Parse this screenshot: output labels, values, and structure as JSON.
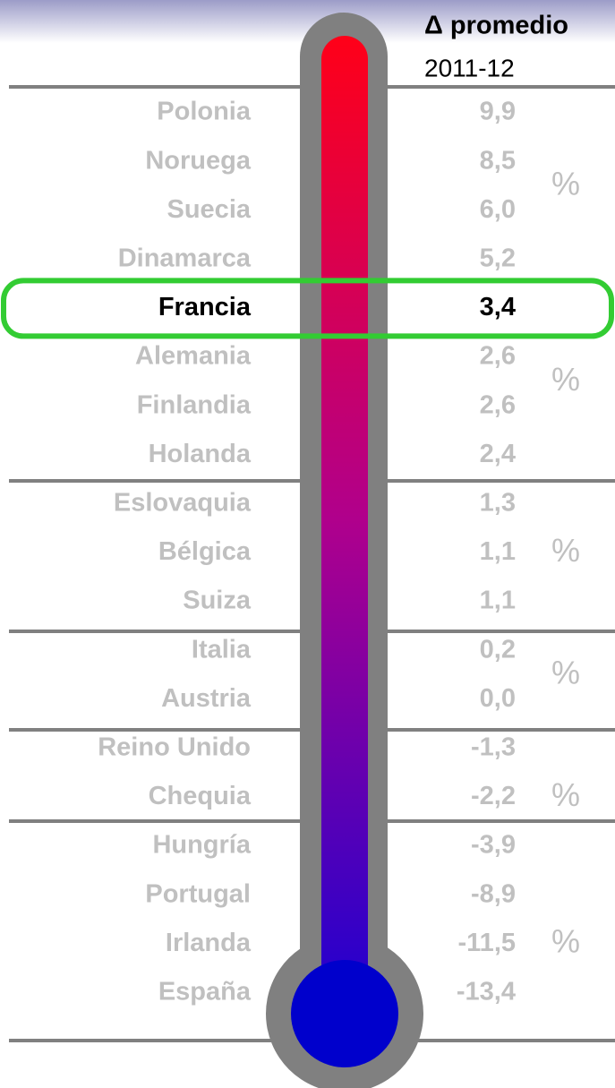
{
  "header": {
    "title": "Δ promedio",
    "subtitle": "2011-12"
  },
  "rows": [
    {
      "country": "Polonia",
      "value": "9,9"
    },
    {
      "country": "Noruega",
      "value": "8,5"
    },
    {
      "country": "Suecia",
      "value": "6,0"
    },
    {
      "country": "Dinamarca",
      "value": "5,2"
    },
    {
      "country": "Francia",
      "value": "3,4",
      "highlighted": true
    },
    {
      "country": "Alemania",
      "value": "2,6"
    },
    {
      "country": "Finlandia",
      "value": "2,6"
    },
    {
      "country": "Holanda",
      "value": "2,4"
    },
    {
      "country": "Eslovaquia",
      "value": "1,3"
    },
    {
      "country": "Bélgica",
      "value": "1,1"
    },
    {
      "country": "Suiza",
      "value": "1,1"
    },
    {
      "country": "Italia",
      "value": "0,2"
    },
    {
      "country": "Austria",
      "value": "0,0"
    },
    {
      "country": "Reino Unido",
      "value": "-1,3"
    },
    {
      "country": "Chequia",
      "value": "-2,2"
    },
    {
      "country": "Hungría",
      "value": "-3,9"
    },
    {
      "country": "Portugal",
      "value": "-8,9"
    },
    {
      "country": "Irlanda",
      "value": "-11,5"
    },
    {
      "country": "España",
      "value": "-13,4"
    }
  ],
  "groups": [
    {
      "first": 0,
      "last": 3,
      "unit": "%"
    },
    {
      "first": 4,
      "last": 7,
      "unit": "%"
    },
    {
      "first": 8,
      "last": 10,
      "unit": "%"
    },
    {
      "first": 11,
      "last": 12,
      "unit": "%"
    },
    {
      "first": 13,
      "last": 15,
      "unit": "%"
    },
    {
      "first": 16,
      "last": 18,
      "unit": "%"
    }
  ]
}
